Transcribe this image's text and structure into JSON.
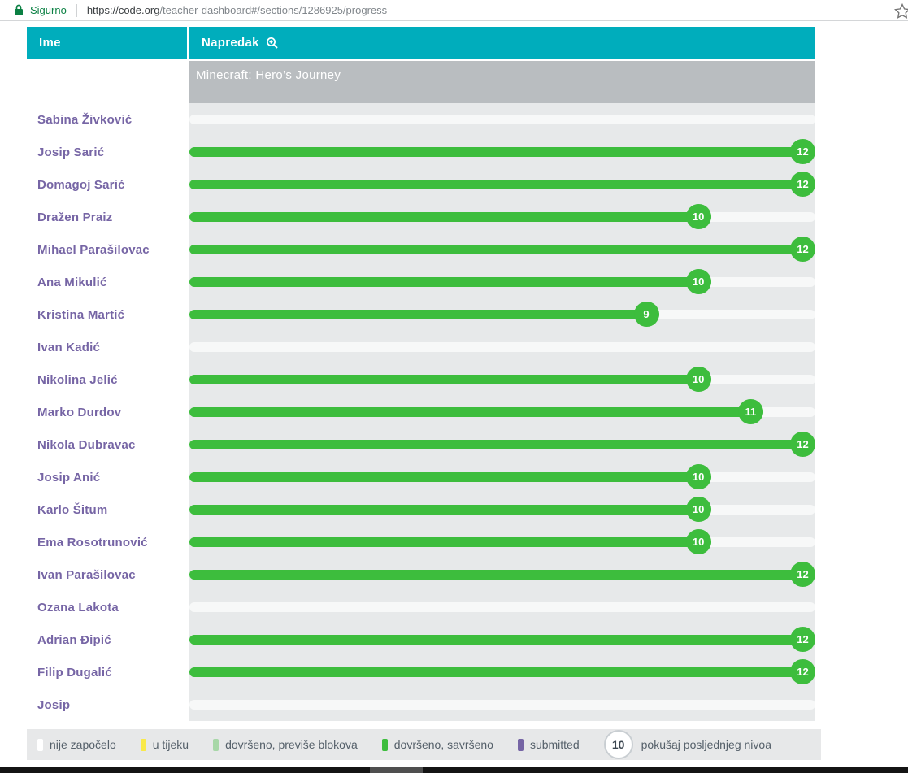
{
  "browser": {
    "security_label": "Sigurno",
    "url_domain": "https://code.org",
    "url_path": "/teacher-dashboard#/sections/1286925/progress"
  },
  "table": {
    "name_header": "Ime",
    "progress_header": "Napredak",
    "course_title": "Minecraft: Hero’s Journey",
    "max_level": 12,
    "students": [
      {
        "name": "Sabina Živković",
        "level": 0
      },
      {
        "name": "Josip Sarić",
        "level": 12
      },
      {
        "name": "Domagoj Sarić",
        "level": 12
      },
      {
        "name": "Dražen Praiz",
        "level": 10
      },
      {
        "name": "Mihael Parašilovac",
        "level": 12
      },
      {
        "name": "Ana Mikulić",
        "level": 10
      },
      {
        "name": "Kristina Martić",
        "level": 9
      },
      {
        "name": "Ivan Kadić",
        "level": 0
      },
      {
        "name": "Nikolina Jelić",
        "level": 10
      },
      {
        "name": "Marko Durdov",
        "level": 11
      },
      {
        "name": "Nikola Dubravac",
        "level": 12
      },
      {
        "name": "Josip Anić",
        "level": 10
      },
      {
        "name": "Karlo Šitum",
        "level": 10
      },
      {
        "name": "Ema Rosotrunović",
        "level": 10
      },
      {
        "name": "Ivan Parašilovac",
        "level": 12
      },
      {
        "name": "Ozana Lakota",
        "level": 0
      },
      {
        "name": "Adrian Đipić",
        "level": 12
      },
      {
        "name": "Filip Dugalić",
        "level": 12
      },
      {
        "name": "Josip",
        "level": 0
      }
    ]
  },
  "legend": {
    "items": [
      {
        "label": "nije započelo",
        "color": "#ffffff"
      },
      {
        "label": "u tijeku",
        "color": "#f9e94a"
      },
      {
        "label": "dovršeno, previše blokova",
        "color": "#a7d7a7"
      },
      {
        "label": "dovršeno, savršeno",
        "color": "#3dbd3d"
      },
      {
        "label": "submitted",
        "color": "#7665a5"
      }
    ],
    "bubble_value": "10",
    "bubble_label": "pokušaj posljednjeg nivoa"
  },
  "colors": {
    "teal": "#00adbc",
    "subheader_gray": "#b9bdc0",
    "row_gray": "#e7e9ea",
    "track_white": "#f7f8f8",
    "progress_green": "#3dbd3d",
    "name_purple": "#7665a5",
    "secure_green": "#0b8043"
  }
}
